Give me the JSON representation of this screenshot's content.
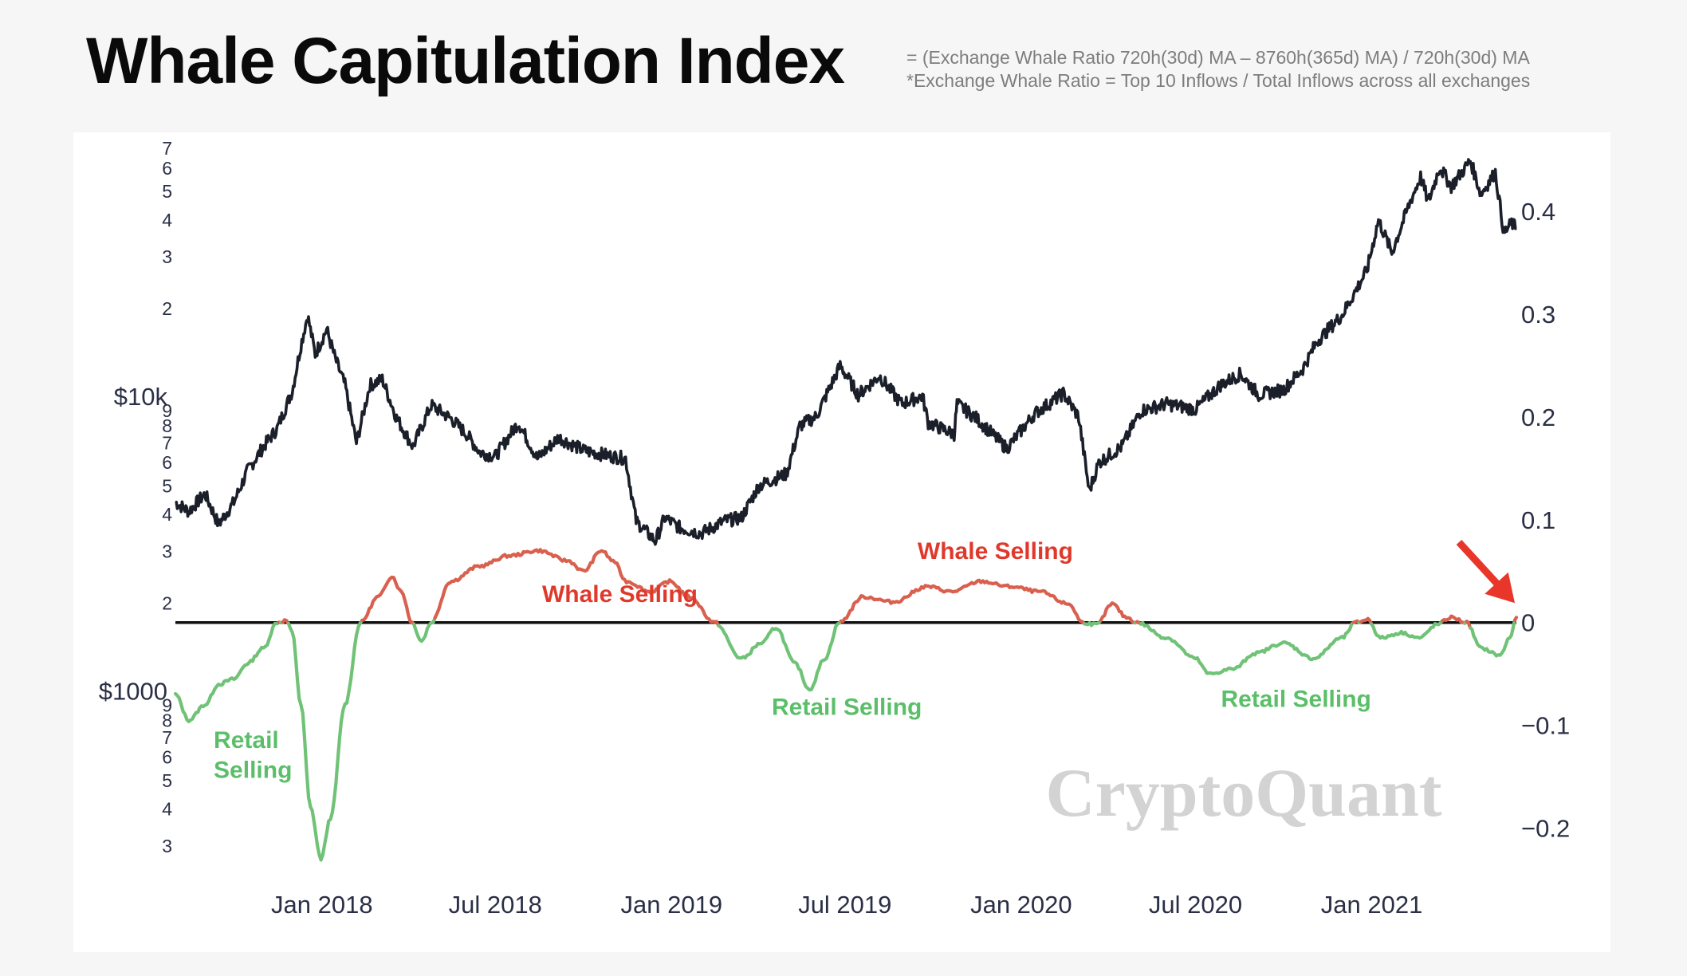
{
  "header": {
    "title": "Whale Capitulation Index",
    "formula_line1": "= (Exchange Whale Ratio 720h(30d) MA – 8760h(365d) MA) / 720h(30d) MA",
    "formula_line2": "*Exchange Whale Ratio = Top 10 Inflows / Total Inflows across all exchanges"
  },
  "watermark": "CryptoQuant",
  "colors": {
    "price": "#1b1f2a",
    "whale_selling": "#d9604f",
    "retail_selling": "#6fc276",
    "zero_line": "#111111",
    "arrow": "#e8372a",
    "whale_label": "#e0392b",
    "retail_label": "#5bbf6a",
    "watermark": "#d3d3d3",
    "axis_text": "#2a2f45"
  },
  "chart_data": {
    "type": "line",
    "x_ticks": [
      "Jan 2018",
      "Jul 2018",
      "Jan 2019",
      "Jul 2019",
      "Jan 2020",
      "Jul 2020",
      "Jan 2021"
    ],
    "x_range": [
      "2017-08-01",
      "2021-06-01"
    ],
    "y_left": {
      "scale": "log",
      "range": [
        2500,
        75000
      ],
      "major_labels": [
        {
          "value": 1000,
          "label": "$1000"
        },
        {
          "value": 10000,
          "label": "$10k"
        }
      ],
      "minor_labels": [
        {
          "value": 3000,
          "label": "3"
        },
        {
          "value": 4000,
          "label": "4"
        },
        {
          "value": 5000,
          "label": "5"
        },
        {
          "value": 6000,
          "label": "6"
        },
        {
          "value": 7000,
          "label": "7"
        },
        {
          "value": 8000,
          "label": "8"
        },
        {
          "value": 9000,
          "label": "9"
        },
        {
          "value": 20000,
          "label": "2"
        },
        {
          "value": 30000,
          "label": "3"
        },
        {
          "value": 40000,
          "label": "4"
        },
        {
          "value": 50000,
          "label": "5"
        },
        {
          "value": 60000,
          "label": "6"
        },
        {
          "value": 70000,
          "label": "7"
        },
        {
          "value": 2000,
          "label": "2"
        },
        {
          "value": 300,
          "label": "3"
        },
        {
          "value": 400,
          "label": "4"
        },
        {
          "value": 500,
          "label": "5"
        },
        {
          "value": 600,
          "label": "6"
        },
        {
          "value": 700,
          "label": "7"
        },
        {
          "value": 800,
          "label": "8"
        },
        {
          "value": 900,
          "label": "9"
        }
      ]
    },
    "y_right": {
      "scale": "linear",
      "range": [
        -0.24,
        0.47
      ],
      "ticks": [
        0.4,
        0.3,
        0.2,
        0.1,
        0,
        -0.1,
        -0.2
      ],
      "tick_labels": [
        "0.4",
        "0.3",
        "0.2",
        "0.1",
        "0",
        "−0.1",
        "−0.2"
      ]
    },
    "series": [
      {
        "name": "BTC price",
        "axis": "left",
        "points": [
          [
            "2017-08-01",
            4400
          ],
          [
            "2017-08-15",
            4100
          ],
          [
            "2017-09-01",
            4700
          ],
          [
            "2017-09-15",
            3700
          ],
          [
            "2017-10-01",
            4400
          ],
          [
            "2017-10-15",
            5600
          ],
          [
            "2017-11-01",
            6800
          ],
          [
            "2017-11-15",
            7800
          ],
          [
            "2017-12-01",
            10500
          ],
          [
            "2017-12-10",
            15000
          ],
          [
            "2017-12-17",
            19000
          ],
          [
            "2017-12-25",
            14000
          ],
          [
            "2018-01-06",
            17000
          ],
          [
            "2018-01-15",
            13500
          ],
          [
            "2018-01-25",
            11000
          ],
          [
            "2018-02-06",
            7000
          ],
          [
            "2018-02-20",
            11000
          ],
          [
            "2018-03-05",
            11500
          ],
          [
            "2018-03-20",
            8500
          ],
          [
            "2018-04-06",
            6800
          ],
          [
            "2018-04-25",
            9400
          ],
          [
            "2018-05-15",
            8500
          ],
          [
            "2018-06-01",
            7500
          ],
          [
            "2018-06-15",
            6500
          ],
          [
            "2018-07-01",
            6300
          ],
          [
            "2018-07-25",
            8200
          ],
          [
            "2018-08-14",
            6200
          ],
          [
            "2018-09-05",
            7300
          ],
          [
            "2018-10-01",
            6600
          ],
          [
            "2018-10-31",
            6300
          ],
          [
            "2018-11-14",
            6200
          ],
          [
            "2018-11-25",
            3800
          ],
          [
            "2018-12-15",
            3250
          ],
          [
            "2018-12-25",
            3900
          ],
          [
            "2019-01-10",
            3600
          ],
          [
            "2019-02-01",
            3450
          ],
          [
            "2019-02-25",
            3800
          ],
          [
            "2019-03-15",
            3900
          ],
          [
            "2019-04-02",
            5000
          ],
          [
            "2019-05-01",
            5500
          ],
          [
            "2019-05-15",
            8000
          ],
          [
            "2019-06-01",
            8600
          ],
          [
            "2019-06-26",
            12800
          ],
          [
            "2019-07-15",
            10200
          ],
          [
            "2019-08-06",
            11800
          ],
          [
            "2019-08-29",
            9500
          ],
          [
            "2019-09-20",
            10100
          ],
          [
            "2019-09-26",
            8200
          ],
          [
            "2019-10-23",
            7500
          ],
          [
            "2019-10-26",
            9500
          ],
          [
            "2019-11-15",
            8500
          ],
          [
            "2019-12-17",
            6700
          ],
          [
            "2020-01-15",
            8800
          ],
          [
            "2020-02-14",
            10300
          ],
          [
            "2020-03-01",
            8600
          ],
          [
            "2020-03-12",
            4800
          ],
          [
            "2020-03-22",
            6000
          ],
          [
            "2020-04-15",
            6800
          ],
          [
            "2020-05-05",
            9000
          ],
          [
            "2020-06-01",
            9500
          ],
          [
            "2020-07-01",
            9100
          ],
          [
            "2020-07-27",
            11000
          ],
          [
            "2020-08-17",
            12000
          ],
          [
            "2020-09-05",
            10200
          ],
          [
            "2020-10-01",
            10600
          ],
          [
            "2020-10-21",
            12500
          ],
          [
            "2020-11-05",
            15500
          ],
          [
            "2020-12-01",
            19000
          ],
          [
            "2020-12-27",
            27000
          ],
          [
            "2021-01-08",
            40000
          ],
          [
            "2021-01-22",
            31000
          ],
          [
            "2021-02-10",
            46000
          ],
          [
            "2021-02-21",
            56000
          ],
          [
            "2021-03-01",
            46000
          ],
          [
            "2021-03-13",
            60500
          ],
          [
            "2021-03-25",
            52000
          ],
          [
            "2021-04-14",
            63500
          ],
          [
            "2021-04-25",
            49000
          ],
          [
            "2021-05-10",
            58000
          ],
          [
            "2021-05-19",
            36000
          ],
          [
            "2021-05-27",
            39000
          ],
          [
            "2021-06-01",
            37500
          ]
        ]
      },
      {
        "name": "Whale Capitulation Index",
        "axis": "right",
        "points": [
          [
            "2017-08-01",
            -0.07
          ],
          [
            "2017-08-15",
            -0.095
          ],
          [
            "2017-09-01",
            -0.08
          ],
          [
            "2017-09-15",
            -0.06
          ],
          [
            "2017-10-01",
            -0.055
          ],
          [
            "2017-10-15",
            -0.04
          ],
          [
            "2017-11-01",
            -0.025
          ],
          [
            "2017-11-15",
            0.0
          ],
          [
            "2017-11-25",
            0.002
          ],
          [
            "2017-12-01",
            -0.01
          ],
          [
            "2017-12-10",
            -0.08
          ],
          [
            "2017-12-20",
            -0.18
          ],
          [
            "2017-12-31",
            -0.23
          ],
          [
            "2018-01-10",
            -0.19
          ],
          [
            "2018-01-25",
            -0.08
          ],
          [
            "2018-02-10",
            0.0
          ],
          [
            "2018-03-01",
            0.025
          ],
          [
            "2018-03-15",
            0.045
          ],
          [
            "2018-03-25",
            0.03
          ],
          [
            "2018-04-05",
            0.0
          ],
          [
            "2018-04-15",
            -0.018
          ],
          [
            "2018-04-25",
            0.0
          ],
          [
            "2018-05-15",
            0.04
          ],
          [
            "2018-06-15",
            0.055
          ],
          [
            "2018-07-15",
            0.065
          ],
          [
            "2018-08-15",
            0.07
          ],
          [
            "2018-09-15",
            0.06
          ],
          [
            "2018-10-01",
            0.05
          ],
          [
            "2018-10-20",
            0.07
          ],
          [
            "2018-11-01",
            0.06
          ],
          [
            "2018-11-15",
            0.04
          ],
          [
            "2018-12-10",
            0.03
          ],
          [
            "2018-12-30",
            0.04
          ],
          [
            "2019-01-20",
            0.025
          ],
          [
            "2019-02-15",
            0.0
          ],
          [
            "2019-03-15",
            -0.035
          ],
          [
            "2019-04-05",
            -0.02
          ],
          [
            "2019-04-20",
            -0.005
          ],
          [
            "2019-05-10",
            -0.04
          ],
          [
            "2019-05-25",
            -0.065
          ],
          [
            "2019-06-10",
            -0.035
          ],
          [
            "2019-06-25",
            0.0
          ],
          [
            "2019-07-20",
            0.025
          ],
          [
            "2019-08-20",
            0.02
          ],
          [
            "2019-09-25",
            0.035
          ],
          [
            "2019-10-20",
            0.03
          ],
          [
            "2019-11-20",
            0.04
          ],
          [
            "2019-12-20",
            0.035
          ],
          [
            "2020-01-20",
            0.03
          ],
          [
            "2020-02-20",
            0.018
          ],
          [
            "2020-03-05",
            0.0
          ],
          [
            "2020-03-20",
            -0.002
          ],
          [
            "2020-04-05",
            0.018
          ],
          [
            "2020-04-20",
            0.005
          ],
          [
            "2020-05-01",
            0.0
          ],
          [
            "2020-06-01",
            -0.015
          ],
          [
            "2020-07-01",
            -0.035
          ],
          [
            "2020-07-15",
            -0.05
          ],
          [
            "2020-08-10",
            -0.045
          ],
          [
            "2020-09-01",
            -0.03
          ],
          [
            "2020-10-01",
            -0.02
          ],
          [
            "2020-11-01",
            -0.035
          ],
          [
            "2020-12-01",
            -0.015
          ],
          [
            "2020-12-15",
            0.0
          ],
          [
            "2020-12-28",
            0.003
          ],
          [
            "2021-01-10",
            -0.015
          ],
          [
            "2021-02-01",
            -0.01
          ],
          [
            "2021-02-20",
            -0.015
          ],
          [
            "2021-03-10",
            -0.002
          ],
          [
            "2021-03-25",
            0.005
          ],
          [
            "2021-04-10",
            0.0
          ],
          [
            "2021-04-25",
            -0.025
          ],
          [
            "2021-05-15",
            -0.032
          ],
          [
            "2021-05-25",
            -0.015
          ],
          [
            "2021-06-01",
            0.005
          ]
        ]
      }
    ],
    "zero_line": 0,
    "annotations": [
      {
        "text": "Whale Selling",
        "date": "2018-11-08",
        "value": 0.02,
        "type": "whale"
      },
      {
        "text": "Whale Selling",
        "date": "2019-12-05",
        "value": 0.062,
        "type": "whale"
      },
      {
        "text": "Retail Selling",
        "date": "2019-07-03",
        "value": -0.09,
        "type": "retail"
      },
      {
        "text": "Retail Selling",
        "date": "2020-10-14",
        "value": -0.082,
        "type": "retail"
      },
      {
        "text": "Retail",
        "date": "2017-09-10",
        "value": -0.122,
        "type": "retail"
      },
      {
        "text": "Selling",
        "date": "2017-09-10",
        "value": -0.151,
        "type": "retail"
      }
    ],
    "arrow": {
      "points_to_date": "2021-06-01",
      "points_to_value": 0.005
    }
  }
}
